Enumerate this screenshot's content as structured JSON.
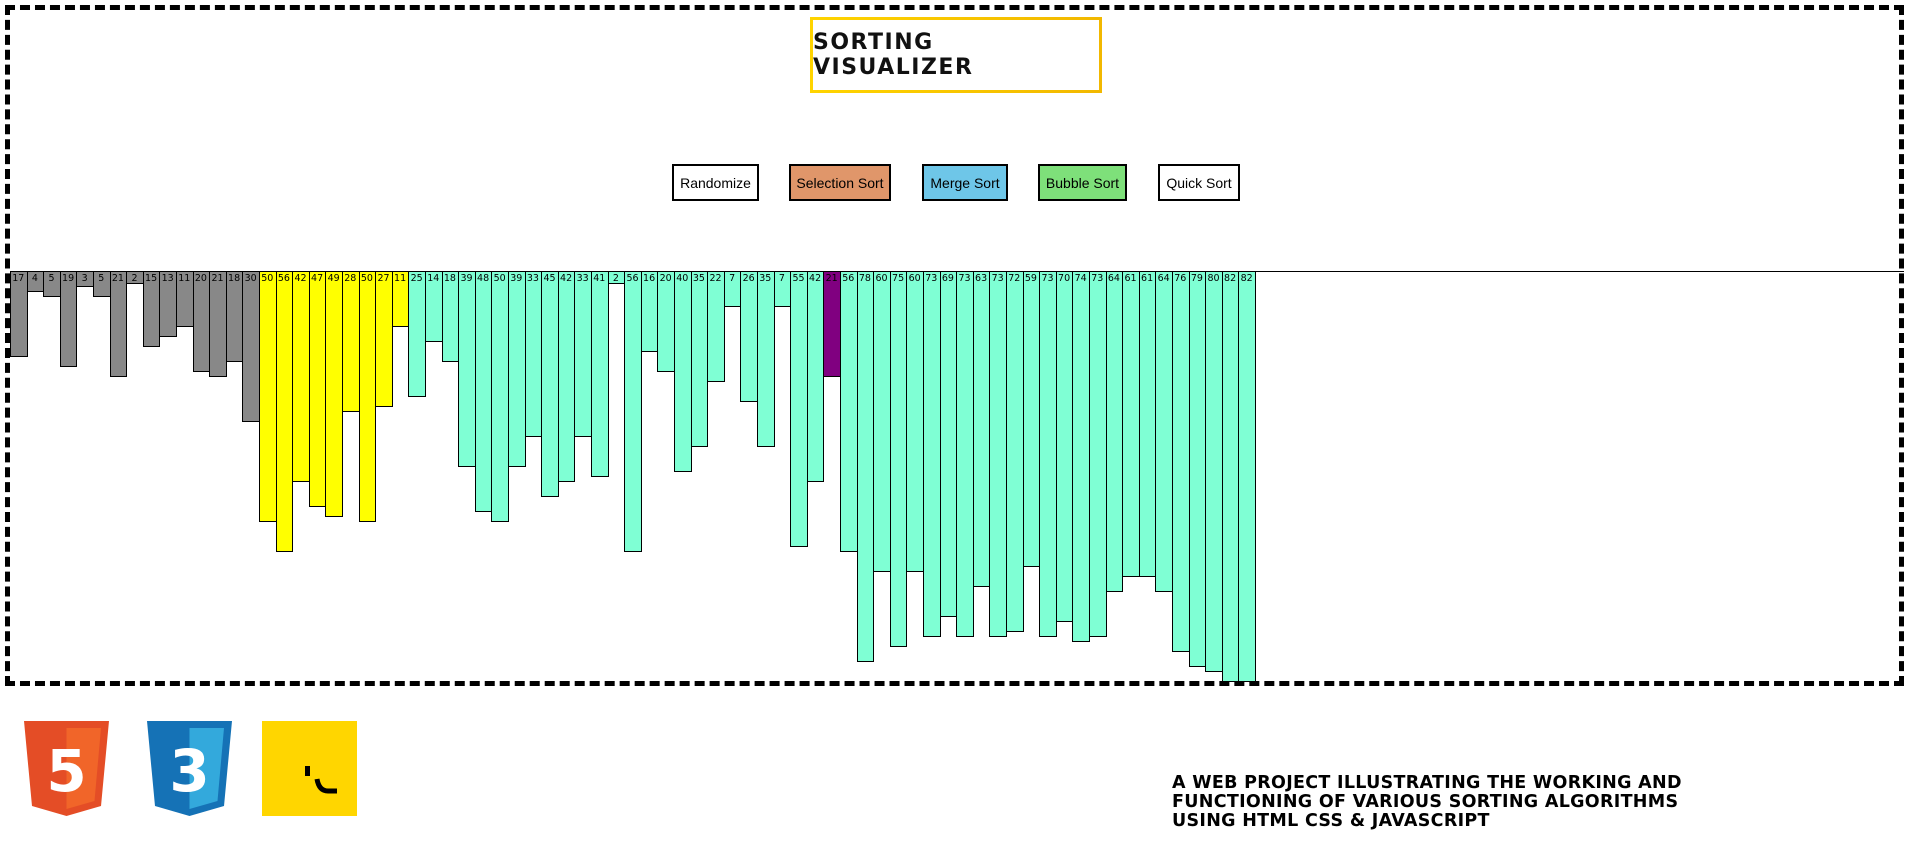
{
  "header": {
    "title": "SORTING VISUALIZER"
  },
  "controls": [
    {
      "name": "randomize-button",
      "label": "Randomize",
      "color": "#ffffff"
    },
    {
      "name": "selection-sort-button",
      "label": "Selection Sort",
      "color": "#e0966a"
    },
    {
      "name": "merge-sort-button",
      "label": "Merge Sort",
      "color": "#6ec6e8"
    },
    {
      "name": "bubble-sort-button",
      "label": "Bubble Sort",
      "color": "#7ee07a"
    },
    {
      "name": "quick-sort-button",
      "label": "Quick Sort",
      "color": "#ffffff"
    }
  ],
  "state_colors": {
    "done": "#888888",
    "active": "#ffff00",
    "pivot": "#800080",
    "default": "#7fffd4"
  },
  "chart_data": {
    "type": "bar",
    "values": [
      17,
      4,
      5,
      19,
      3,
      5,
      21,
      2,
      15,
      13,
      11,
      20,
      21,
      18,
      30,
      50,
      56,
      42,
      47,
      49,
      28,
      50,
      27,
      11,
      25,
      14,
      18,
      39,
      48,
      50,
      39,
      33,
      45,
      42,
      33,
      41,
      2,
      56,
      16,
      20,
      40,
      35,
      22,
      7,
      26,
      35,
      7,
      55,
      42,
      21,
      56,
      78,
      60,
      75,
      60,
      73,
      69,
      73,
      63,
      73,
      72,
      59,
      73,
      70,
      74,
      73,
      64,
      61,
      61,
      64,
      76,
      79,
      80,
      82,
      82
    ],
    "states": [
      "done",
      "done",
      "done",
      "done",
      "done",
      "done",
      "done",
      "done",
      "done",
      "done",
      "done",
      "done",
      "done",
      "done",
      "done",
      "active",
      "active",
      "active",
      "active",
      "active",
      "active",
      "active",
      "active",
      "active",
      "default",
      "default",
      "default",
      "default",
      "default",
      "default",
      "default",
      "default",
      "default",
      "default",
      "default",
      "default",
      "default",
      "default",
      "default",
      "default",
      "default",
      "default",
      "default",
      "default",
      "default",
      "default",
      "default",
      "default",
      "default",
      "pivot",
      "default",
      "default",
      "default",
      "default",
      "default",
      "default",
      "default",
      "default",
      "default",
      "default",
      "default",
      "default",
      "default",
      "default",
      "default",
      "default",
      "default",
      "default",
      "default",
      "default",
      "default",
      "default",
      "default",
      "default",
      "default"
    ],
    "ylim": [
      0,
      82
    ]
  },
  "footer": {
    "logos": [
      {
        "name": "html5-logo",
        "text": "5",
        "color": "#e44d26"
      },
      {
        "name": "css3-logo",
        "text": "3",
        "color": "#1572b6"
      },
      {
        "name": "javascript-logo",
        "text": "JS",
        "color": "#ffd600"
      }
    ],
    "description_lines": [
      "A WEB PROJECT ILLUSTRATING THE WORKING AND",
      "FUNCTIONING OF VARIOUS SORTING ALGORITHMS",
      "USING HTML CSS & JAVASCRIPT"
    ]
  }
}
